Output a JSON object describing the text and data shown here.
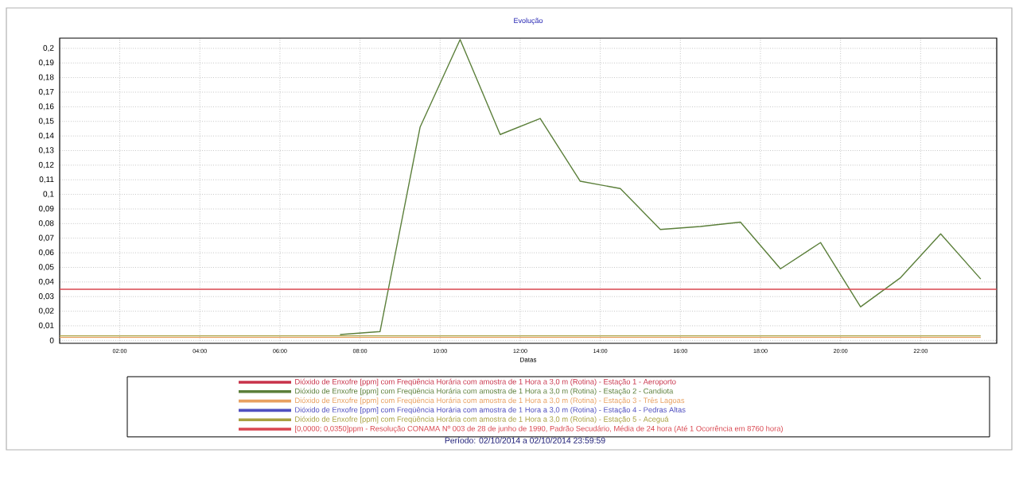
{
  "chart_data": {
    "type": "line",
    "title": "Evolução",
    "xlabel": "Datas",
    "annotations": [
      "Período: 02/10/2014 a 02/10/2014 23:59:59"
    ],
    "xlim": [
      0.5,
      23.9
    ],
    "ylim": [
      -0.002,
      0.207
    ],
    "xticks": [
      {
        "value": 2,
        "label": "02:00"
      },
      {
        "value": 4,
        "label": "04:00"
      },
      {
        "value": 6,
        "label": "06:00"
      },
      {
        "value": 8,
        "label": "08:00"
      },
      {
        "value": 10,
        "label": "10:00"
      },
      {
        "value": 12,
        "label": "12:00"
      },
      {
        "value": 14,
        "label": "14:00"
      },
      {
        "value": 16,
        "label": "16:00"
      },
      {
        "value": 18,
        "label": "18:00"
      },
      {
        "value": 20,
        "label": "20:00"
      },
      {
        "value": 22,
        "label": "22:00"
      }
    ],
    "yticks": [
      0,
      {
        "value": 0.01,
        "label": "0,01"
      },
      {
        "value": 0.02,
        "label": "0,02"
      },
      {
        "value": 0.03,
        "label": "0,03"
      },
      {
        "value": 0.04,
        "label": "0,04"
      },
      {
        "value": 0.05,
        "label": "0,05"
      },
      {
        "value": 0.06,
        "label": "0,06"
      },
      {
        "value": 0.07,
        "label": "0,07"
      },
      {
        "value": 0.08,
        "label": "0,08"
      },
      {
        "value": 0.09,
        "label": "0,09"
      },
      {
        "value": 0.1,
        "label": "0,1"
      },
      {
        "value": 0.11,
        "label": "0,11"
      },
      {
        "value": 0.12,
        "label": "0,12"
      },
      {
        "value": 0.13,
        "label": "0,13"
      },
      {
        "value": 0.14,
        "label": "0,14"
      },
      {
        "value": 0.15,
        "label": "0,15"
      },
      {
        "value": 0.16,
        "label": "0,16"
      },
      {
        "value": 0.17,
        "label": "0,17"
      },
      {
        "value": 0.18,
        "label": "0,18"
      },
      {
        "value": 0.19,
        "label": "0,19"
      },
      {
        "value": 0.2,
        "label": "0,2"
      }
    ],
    "grid": true,
    "legend": "bottom",
    "marker": "none",
    "line_style": "solid",
    "series": [
      {
        "name": "Dióxido de Enxofre [ppm] com Freqüência Horária com amostra de 1 Hora a 3,0 m (Rotina) - Estação 1 - Aeroporto",
        "color": "#c8324a"
      },
      {
        "name": "Dióxido de Enxofre [ppm] com Freqüência Horária com amostra de 1 Hora a 3,0 m (Rotina) - Estação 2 - Candiota",
        "color": "#5b7f3a",
        "x": [
          7.5,
          8.5,
          9.5,
          10.5,
          11.5,
          12.5,
          13.5,
          14.5,
          15.5,
          16.5,
          17.5,
          18.5,
          19.5,
          20.5,
          21.5,
          22.5,
          23.5
        ],
        "values": [
          0.004,
          0.006,
          0.146,
          0.206,
          0.141,
          0.152,
          0.109,
          0.104,
          0.076,
          0.078,
          0.081,
          0.049,
          0.067,
          0.023,
          0.043,
          0.073,
          0.042
        ]
      },
      {
        "name": "Dióxido de Enxofre [ppm] com Freqüência Horária com amostra de 1 Hora a 3,0 m (Rotina) - Estação 3 - Três Lagoas",
        "color": "#e8a060",
        "x": [
          0.5,
          23.5
        ],
        "values": [
          0.002,
          0.002
        ]
      },
      {
        "name": "Dióxido de Enxofre [ppm] com Freqüência Horária com amostra de 1 Hora a 3,0 m (Rotina) - Estação 4 - Pedras Altas",
        "color": "#5050c0"
      },
      {
        "name": "Dióxido de Enxofre [ppm] com Freqüência Horária com amostra de 1 Hora a 3,0 m (Rotina) - Estação 5 - Aceguá",
        "color": "#a8a040",
        "x": [
          0.5,
          23.5
        ],
        "values": [
          0.003,
          0.003
        ]
      }
    ],
    "ref_lines": [
      {
        "axis": "y",
        "value": 0.035,
        "label": "[0,0000; 0,0350]ppm - Resolução CONAMA Nº 003 de 28 de junho de 1990, Padrão Secudário, Média de 24 hora (Até 1 Ocorrência em 8760 hora)",
        "color": "#d9464f",
        "line_style": "solid"
      }
    ]
  }
}
